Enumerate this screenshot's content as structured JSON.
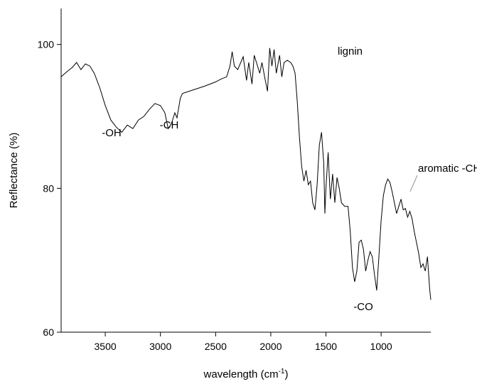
{
  "chart_data": {
    "type": "line",
    "x_label": {
      "text": "wavelength (cm",
      "superscript": "-1",
      "suffix": ")"
    },
    "y_label": "Reflectance (%)",
    "annotations": [
      "lignin",
      "-OH",
      "-CH",
      "-CO",
      "aromatic -CH"
    ],
    "x": [
      3900,
      3850,
      3800,
      3760,
      3720,
      3680,
      3640,
      3600,
      3550,
      3500,
      3450,
      3400,
      3350,
      3300,
      3250,
      3200,
      3150,
      3100,
      3050,
      3000,
      2960,
      2930,
      2900,
      2870,
      2850,
      2820,
      2800,
      2700,
      2600,
      2500,
      2450,
      2400,
      2370,
      2350,
      2330,
      2300,
      2250,
      2220,
      2200,
      2170,
      2150,
      2100,
      2080,
      2050,
      2030,
      2010,
      1990,
      1970,
      1950,
      1920,
      1900,
      1880,
      1850,
      1820,
      1800,
      1780,
      1760,
      1740,
      1720,
      1700,
      1680,
      1660,
      1640,
      1620,
      1600,
      1580,
      1560,
      1540,
      1520,
      1510,
      1500,
      1480,
      1460,
      1440,
      1420,
      1400,
      1380,
      1360,
      1330,
      1300,
      1280,
      1260,
      1240,
      1220,
      1200,
      1180,
      1160,
      1140,
      1120,
      1100,
      1080,
      1060,
      1040,
      1020,
      1000,
      980,
      960,
      940,
      920,
      900,
      880,
      860,
      840,
      820,
      800,
      780,
      760,
      740,
      720,
      700,
      680,
      660,
      640,
      620,
      600,
      580,
      560,
      550
    ],
    "y": [
      95.5,
      96.2,
      96.8,
      97.5,
      96.5,
      97.3,
      97.0,
      96.0,
      94.0,
      91.5,
      89.5,
      88.5,
      87.8,
      88.8,
      88.3,
      89.5,
      90.0,
      91.0,
      91.8,
      91.5,
      90.5,
      88.3,
      89.0,
      90.5,
      89.8,
      92.5,
      93.2,
      93.7,
      94.2,
      94.8,
      95.2,
      95.5,
      97.0,
      99.0,
      97.0,
      96.5,
      98.3,
      95.0,
      97.5,
      94.5,
      98.5,
      96.0,
      97.5,
      95.0,
      93.5,
      99.5,
      97.0,
      99.3,
      96.0,
      98.5,
      95.5,
      97.5,
      97.8,
      97.5,
      97.0,
      96.0,
      92.0,
      87.0,
      83.0,
      81.0,
      82.5,
      80.5,
      81.0,
      78.0,
      77.0,
      80.5,
      86.0,
      87.8,
      83.5,
      76.5,
      80.0,
      85.0,
      78.5,
      82.0,
      78.0,
      81.5,
      80.0,
      78.0,
      77.5,
      77.5,
      74.0,
      69.0,
      67.0,
      68.5,
      72.5,
      72.8,
      71.5,
      68.5,
      70.0,
      71.2,
      70.5,
      68.0,
      65.8,
      70.5,
      75.5,
      79.0,
      80.5,
      81.3,
      80.8,
      79.5,
      78.0,
      76.5,
      77.5,
      78.5,
      77.0,
      77.2,
      76.0,
      76.8,
      75.8,
      74.0,
      72.5,
      71.0,
      69.0,
      69.5,
      68.5,
      70.5,
      66.0,
      64.5
    ],
    "color": "#000000",
    "xlim": [
      3900,
      550
    ],
    "xticks": [
      3500,
      3000,
      2500,
      2000,
      1500,
      1000
    ],
    "ylim": [
      60,
      105
    ],
    "yticks": [
      60,
      80,
      100
    ]
  }
}
